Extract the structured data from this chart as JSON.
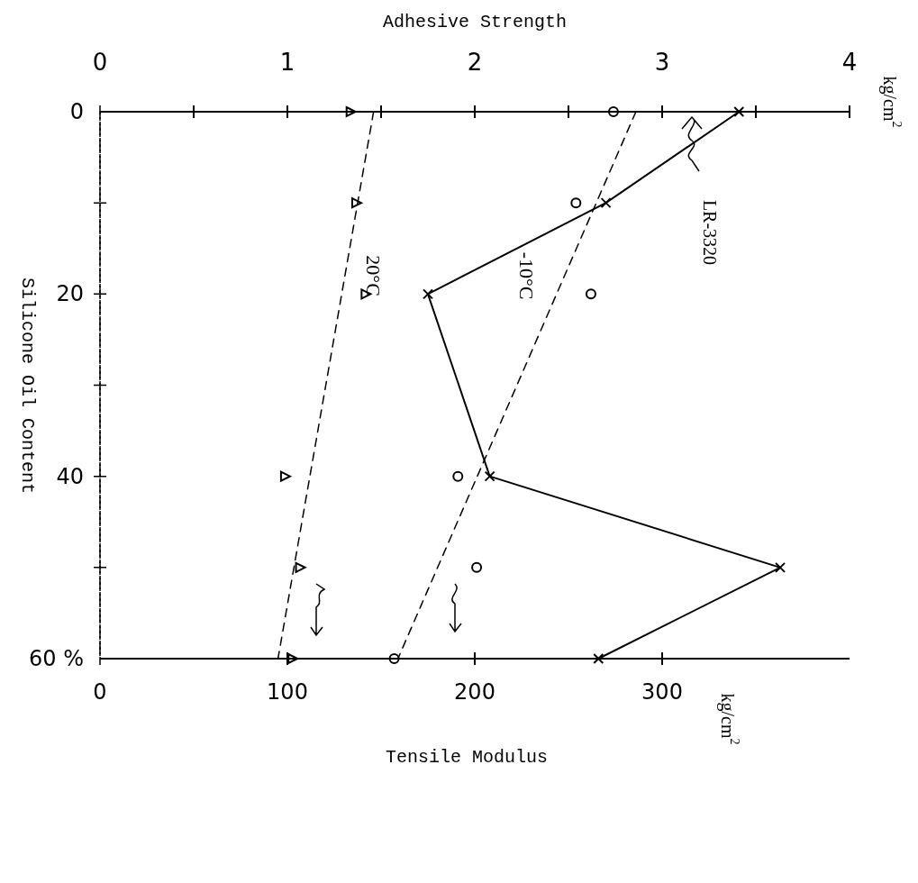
{
  "chart_data": {
    "type": "line",
    "title": "LR-3320",
    "xlabel": "Tensile Modulus",
    "x2label": "Adhesive Strength",
    "ylabel": "Silicone Oil Content",
    "ylim": [
      60,
      0
    ],
    "yticks": [
      0,
      {
        "value": 10,
        "label": null
      },
      20,
      {
        "value": 30,
        "label": null
      },
      40,
      {
        "value": 50,
        "label": null
      },
      {
        "value": 60,
        "label": "60 %"
      }
    ],
    "x2lim": [
      0,
      4
    ],
    "x2ticks": [
      0,
      {
        "value": 0.5,
        "label": null
      },
      1,
      {
        "value": 1.5,
        "label": null
      },
      2,
      {
        "value": 2.5,
        "label": null
      },
      3,
      {
        "value": 3.5,
        "label": null
      },
      4
    ],
    "xlim": [
      0,
      400
    ],
    "xticks": [
      0,
      100,
      200,
      300
    ],
    "annotations": [
      "kg/cm$^{2}$",
      "kg/cm$^{2}$"
    ],
    "series": [
      {
        "type": "line",
        "axis": "x2",
        "color": "#000000",
        "x": [
          3.41,
          2.7,
          1.75,
          2.08,
          3.63,
          2.66
        ],
        "values": [
          0,
          10,
          20,
          40,
          50,
          60
        ],
        "marker": "cross",
        "line_style": "solid"
      },
      {
        "type": "scatter",
        "color": "#000000",
        "x": [
          274,
          254,
          262,
          191,
          201,
          157
        ],
        "values": [
          0,
          10,
          20,
          40,
          50,
          60
        ],
        "marker": "circle"
      },
      {
        "type": "scatter",
        "color": "#000000",
        "x": [
          134,
          137,
          142,
          99,
          107,
          103
        ],
        "values": [
          0,
          10,
          20,
          40,
          50,
          60
        ],
        "marker": "triangle"
      },
      {
        "type": "line",
        "name": "-10°C",
        "color": "#000000",
        "x": [
          286,
          159
        ],
        "values": [
          0,
          60
        ],
        "marker": "none",
        "line_style": "dashed"
      },
      {
        "type": "line",
        "name": "20°C",
        "color": "#000000",
        "x": [
          146,
          95
        ],
        "values": [
          0,
          60
        ],
        "marker": "none",
        "line_style": "dashed"
      }
    ]
  }
}
